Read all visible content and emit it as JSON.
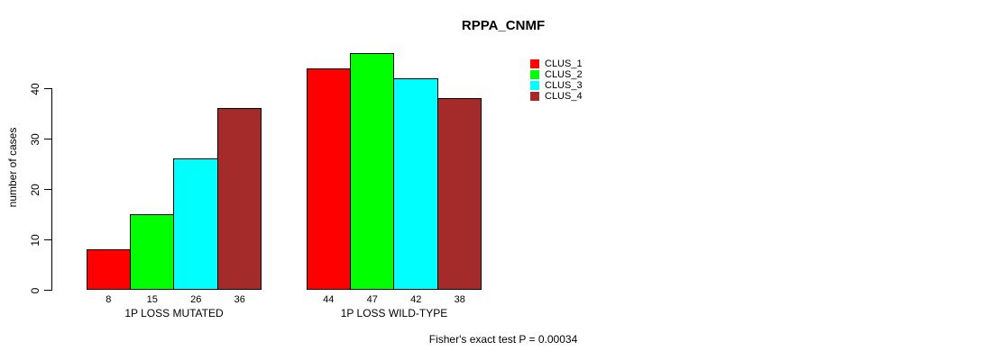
{
  "chart_data": {
    "type": "bar",
    "title": "RPPA_CNMF",
    "ylabel": "number of cases",
    "xlabel": "",
    "ylim": [
      0,
      47
    ],
    "yticks": [
      0,
      10,
      20,
      30,
      40
    ],
    "grid": false,
    "legend_position": "top-right",
    "categories": [
      "1P LOSS MUTATED",
      "1P LOSS WILD-TYPE"
    ],
    "series": [
      {
        "name": "CLUS_1",
        "color": "#ff0000",
        "values": [
          8,
          44
        ]
      },
      {
        "name": "CLUS_2",
        "color": "#00ff00",
        "values": [
          15,
          47
        ]
      },
      {
        "name": "CLUS_3",
        "color": "#00ffff",
        "values": [
          26,
          42
        ]
      },
      {
        "name": "CLUS_4",
        "color": "#a52a2a",
        "values": [
          36,
          38
        ]
      }
    ],
    "bar_value_labels": [
      [
        8,
        15,
        26,
        36
      ],
      [
        44,
        47,
        42,
        38
      ]
    ],
    "annotation": "Fisher's exact test P = 0.00034",
    "axis_color": "#000000",
    "bar_border_color": "#000000"
  }
}
